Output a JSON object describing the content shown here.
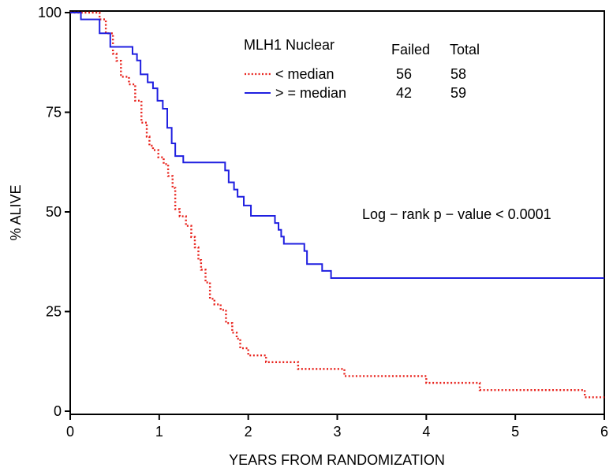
{
  "chart_data": {
    "type": "line",
    "step": true,
    "xlabel": "YEARS FROM RANDOMIZATION",
    "ylabel": "% ALIVE",
    "xlim": [
      0,
      6
    ],
    "ylim": [
      0,
      100
    ],
    "xticks": [
      0,
      1,
      2,
      3,
      4,
      5,
      6
    ],
    "yticks": [
      0,
      25,
      50,
      75,
      100
    ],
    "grid": false,
    "legend": {
      "title": "MLH1  Nuclear",
      "headers": {
        "failed": "Failed",
        "total": "Total"
      },
      "placement": "top-center",
      "rows": [
        {
          "label": "< median",
          "failed": "56",
          "total": "58"
        },
        {
          "label": "> = median",
          "failed": "42",
          "total": "59"
        }
      ]
    },
    "annotation": "Log − rank  p − value  < 0.0001",
    "series": [
      {
        "name": "< median",
        "color": "#e8201a",
        "style": "dotted",
        "points": [
          [
            0,
            100
          ],
          [
            0.33,
            98.3
          ],
          [
            0.4,
            94.8
          ],
          [
            0.48,
            89.7
          ],
          [
            0.52,
            87.9
          ],
          [
            0.57,
            83.9
          ],
          [
            0.66,
            82.0
          ],
          [
            0.73,
            77.9
          ],
          [
            0.8,
            72.4
          ],
          [
            0.86,
            68.9
          ],
          [
            0.89,
            66.6
          ],
          [
            0.93,
            65.5
          ],
          [
            0.99,
            63.7
          ],
          [
            1.05,
            62.0
          ],
          [
            1.1,
            59.0
          ],
          [
            1.15,
            56.0
          ],
          [
            1.18,
            50.7
          ],
          [
            1.23,
            48.9
          ],
          [
            1.3,
            46.5
          ],
          [
            1.36,
            43.7
          ],
          [
            1.4,
            41.1
          ],
          [
            1.44,
            37.9
          ],
          [
            1.47,
            35.5
          ],
          [
            1.52,
            32.3
          ],
          [
            1.57,
            28.2
          ],
          [
            1.62,
            26.8
          ],
          [
            1.69,
            25.4
          ],
          [
            1.75,
            22.1
          ],
          [
            1.82,
            19.7
          ],
          [
            1.87,
            18.2
          ],
          [
            1.91,
            15.8
          ],
          [
            2.0,
            14.0
          ],
          [
            2.2,
            12.3
          ],
          [
            2.56,
            10.6
          ],
          [
            3.08,
            8.8
          ],
          [
            4.0,
            7.1
          ],
          [
            4.6,
            5.3
          ],
          [
            5.78,
            3.5
          ],
          [
            6.0,
            3.5
          ]
        ]
      },
      {
        "name": "> = median",
        "color": "#1f1fe0",
        "style": "solid",
        "points": [
          [
            0,
            100
          ],
          [
            0.12,
            98.3
          ],
          [
            0.33,
            94.8
          ],
          [
            0.45,
            91.4
          ],
          [
            0.7,
            89.6
          ],
          [
            0.75,
            88.0
          ],
          [
            0.79,
            84.5
          ],
          [
            0.87,
            82.5
          ],
          [
            0.93,
            81.0
          ],
          [
            0.98,
            77.9
          ],
          [
            1.04,
            75.9
          ],
          [
            1.09,
            71.1
          ],
          [
            1.14,
            67.2
          ],
          [
            1.18,
            64.0
          ],
          [
            1.27,
            62.4
          ],
          [
            1.74,
            60.4
          ],
          [
            1.78,
            57.4
          ],
          [
            1.84,
            55.6
          ],
          [
            1.88,
            53.8
          ],
          [
            1.95,
            51.6
          ],
          [
            2.03,
            49.0
          ],
          [
            2.3,
            47.2
          ],
          [
            2.34,
            45.5
          ],
          [
            2.37,
            43.8
          ],
          [
            2.4,
            42.0
          ],
          [
            2.63,
            40.2
          ],
          [
            2.66,
            36.9
          ],
          [
            2.83,
            35.2
          ],
          [
            2.93,
            33.4
          ],
          [
            6.0,
            33.4
          ]
        ]
      }
    ]
  }
}
